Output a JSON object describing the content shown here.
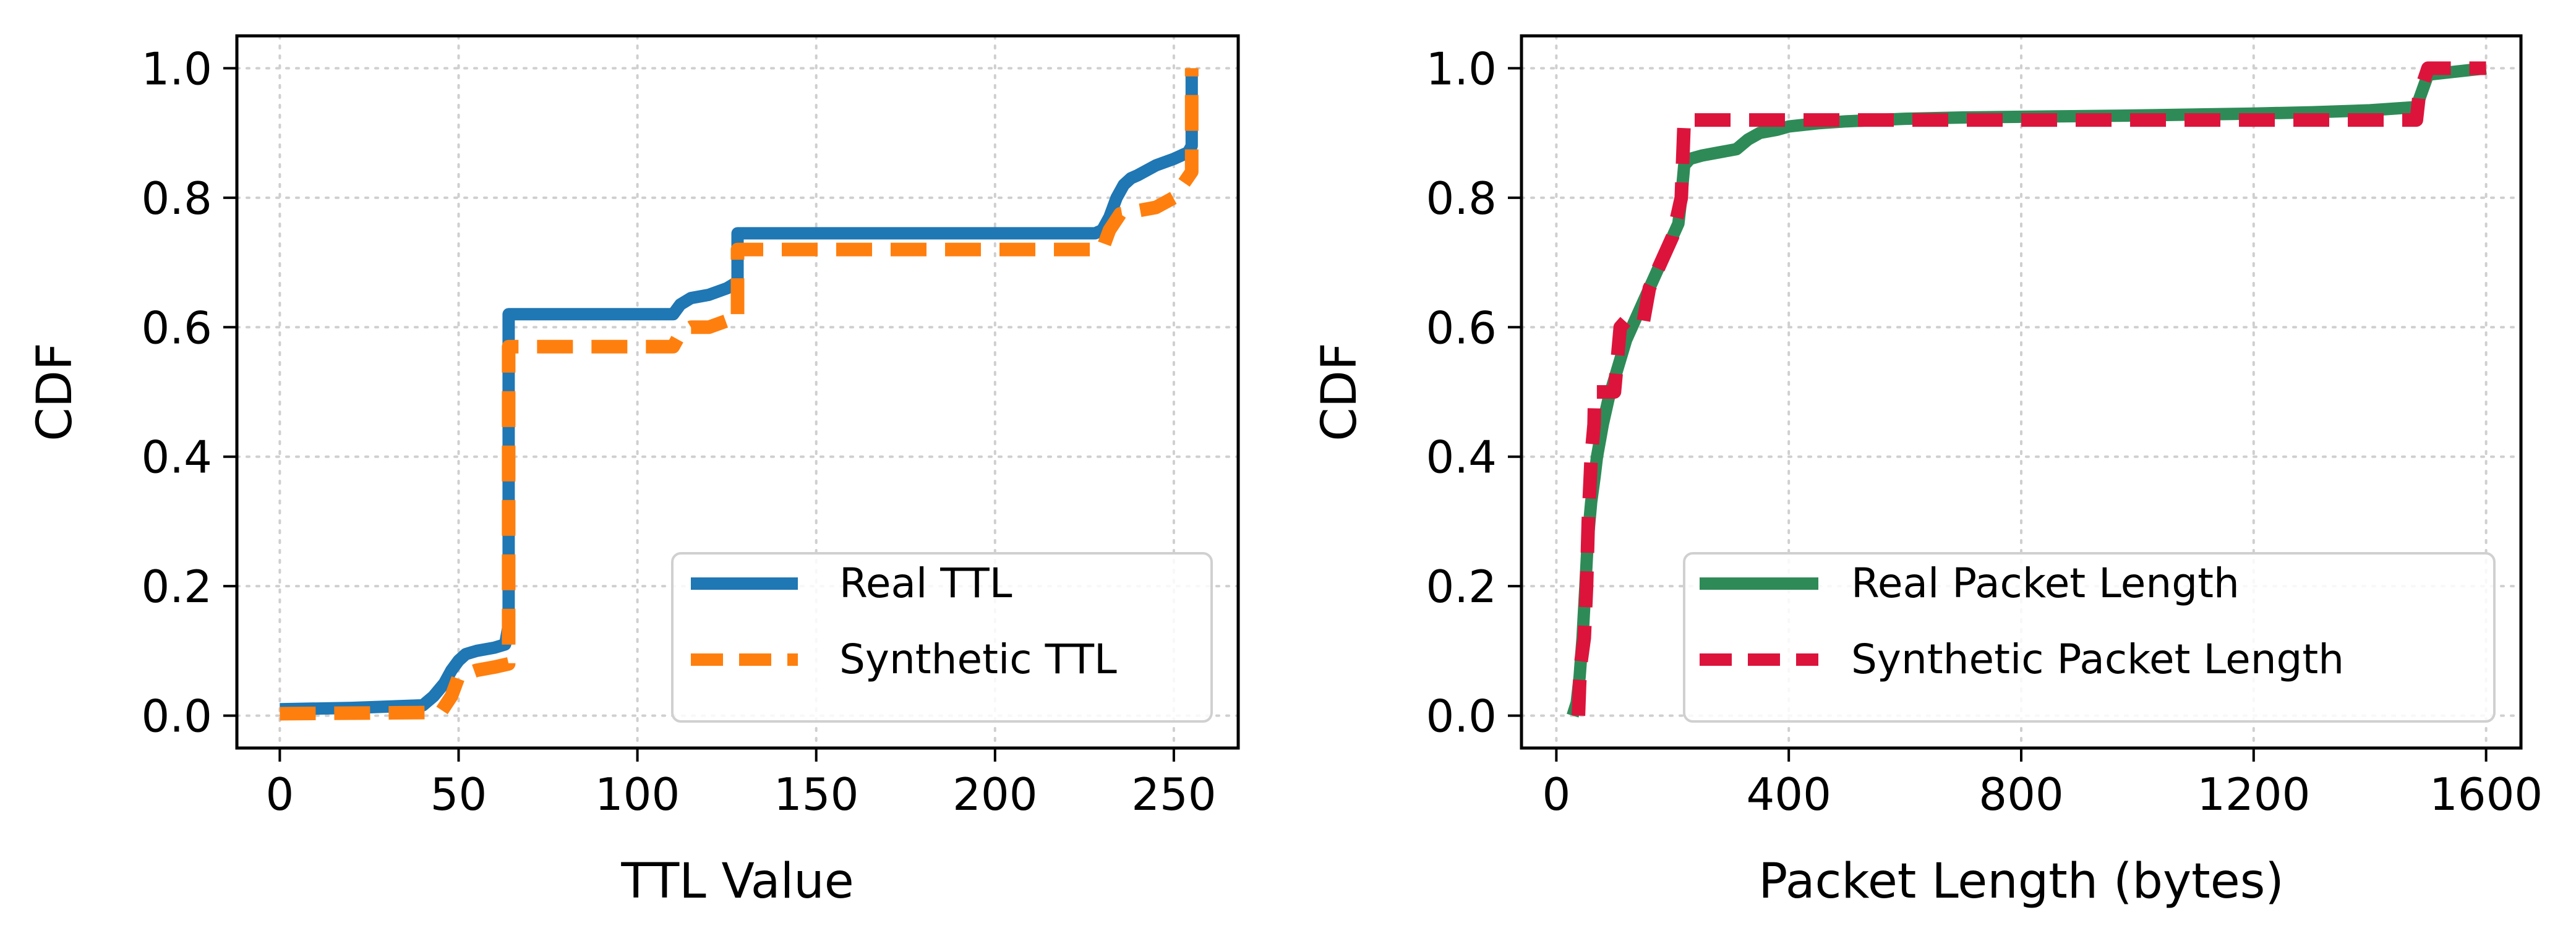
{
  "chart_data": [
    {
      "type": "line",
      "title": "",
      "xlabel": "TTL Value",
      "ylabel": "CDF",
      "xlim": [
        -12,
        268
      ],
      "ylim": [
        -0.05,
        1.05
      ],
      "xticks": [
        0,
        50,
        100,
        150,
        200,
        250
      ],
      "xtick_labels": [
        "0",
        "50",
        "100",
        "150",
        "200",
        "250"
      ],
      "yticks": [
        0.0,
        0.2,
        0.4,
        0.6,
        0.8,
        1.0
      ],
      "ytick_labels": [
        "0.0",
        "0.2",
        "0.4",
        "0.6",
        "0.8",
        "1.0"
      ],
      "grid": true,
      "legend_position": "lower-right",
      "series": [
        {
          "name": "Real TTL",
          "color": "#1f77b4",
          "style": "solid",
          "x": [
            0,
            20,
            40,
            43,
            46,
            48,
            50,
            52,
            55,
            60,
            63,
            64,
            64,
            80,
            100,
            110,
            112,
            115,
            120,
            125,
            128,
            128,
            150,
            200,
            228,
            230,
            232,
            234,
            236,
            238,
            240,
            245,
            250,
            254,
            255,
            255
          ],
          "y": [
            0.01,
            0.012,
            0.016,
            0.03,
            0.05,
            0.07,
            0.085,
            0.095,
            0.1,
            0.105,
            0.11,
            0.14,
            0.62,
            0.62,
            0.62,
            0.62,
            0.635,
            0.645,
            0.65,
            0.66,
            0.67,
            0.745,
            0.745,
            0.745,
            0.745,
            0.75,
            0.77,
            0.8,
            0.82,
            0.83,
            0.835,
            0.85,
            0.86,
            0.87,
            0.88,
            1.0
          ]
        },
        {
          "name": "Synthetic TTL",
          "color": "#ff7f0e",
          "style": "dashed",
          "x": [
            0,
            45,
            48,
            50,
            55,
            60,
            64,
            64,
            80,
            100,
            110,
            112,
            115,
            120,
            125,
            128,
            128,
            150,
            200,
            230,
            232,
            235,
            240,
            245,
            250,
            255,
            255
          ],
          "y": [
            0.003,
            0.005,
            0.03,
            0.06,
            0.07,
            0.075,
            0.08,
            0.57,
            0.57,
            0.57,
            0.57,
            0.59,
            0.6,
            0.6,
            0.61,
            0.61,
            0.72,
            0.72,
            0.72,
            0.72,
            0.75,
            0.775,
            0.78,
            0.785,
            0.8,
            0.84,
            1.0
          ]
        }
      ]
    },
    {
      "type": "line",
      "title": "",
      "xlabel": "Packet Length (bytes)",
      "ylabel": "CDF",
      "xlim": [
        -60,
        1660
      ],
      "ylim": [
        -0.05,
        1.05
      ],
      "xticks": [
        0,
        400,
        800,
        1200,
        1600
      ],
      "xtick_labels": [
        "0",
        "400",
        "800",
        "1200",
        "1600"
      ],
      "yticks": [
        0.0,
        0.2,
        0.4,
        0.6,
        0.8,
        1.0
      ],
      "ytick_labels": [
        "0.0",
        "0.2",
        "0.4",
        "0.6",
        "0.8",
        "1.0"
      ],
      "grid": true,
      "legend_position": "lower-right",
      "series": [
        {
          "name": "Real Packet Length",
          "color": "#2e8b57",
          "style": "solid",
          "x": [
            28,
            35,
            40,
            45,
            50,
            54,
            60,
            66,
            70,
            76,
            80,
            90,
            100,
            110,
            120,
            130,
            140,
            150,
            160,
            170,
            180,
            190,
            200,
            210,
            215,
            220,
            230,
            250,
            280,
            310,
            330,
            350,
            380,
            400,
            450,
            500,
            600,
            700,
            800,
            1000,
            1200,
            1300,
            1400,
            1480,
            1500,
            1600
          ],
          "y": [
            0.0,
            0.02,
            0.06,
            0.12,
            0.2,
            0.27,
            0.33,
            0.37,
            0.4,
            0.43,
            0.45,
            0.49,
            0.52,
            0.55,
            0.58,
            0.6,
            0.62,
            0.64,
            0.66,
            0.68,
            0.7,
            0.72,
            0.74,
            0.76,
            0.8,
            0.85,
            0.86,
            0.865,
            0.87,
            0.875,
            0.89,
            0.9,
            0.905,
            0.91,
            0.915,
            0.918,
            0.922,
            0.924,
            0.925,
            0.927,
            0.93,
            0.932,
            0.935,
            0.94,
            0.99,
            1.0
          ]
        },
        {
          "name": "Synthetic Packet Length",
          "color": "#dc143c",
          "style": "dashed",
          "x": [
            38,
            40,
            42,
            48,
            52,
            55,
            60,
            65,
            66,
            70,
            100,
            110,
            120,
            150,
            160,
            170,
            180,
            190,
            200,
            210,
            215,
            220,
            300,
            400,
            800,
            1200,
            1480,
            1485,
            1500,
            1600
          ],
          "y": [
            0.0,
            0.05,
            0.08,
            0.12,
            0.2,
            0.3,
            0.4,
            0.45,
            0.5,
            0.5,
            0.5,
            0.6,
            0.61,
            0.61,
            0.66,
            0.68,
            0.7,
            0.72,
            0.74,
            0.78,
            0.8,
            0.92,
            0.92,
            0.92,
            0.92,
            0.92,
            0.92,
            0.96,
            1.0,
            1.0
          ]
        }
      ]
    }
  ]
}
